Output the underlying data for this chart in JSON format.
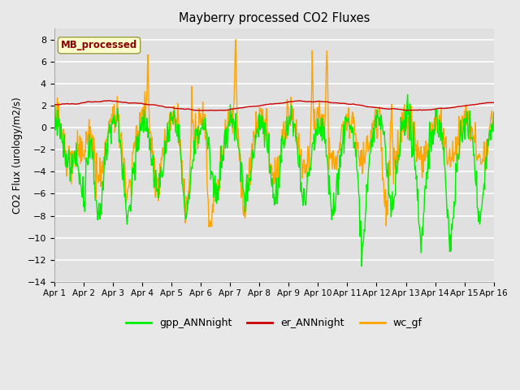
{
  "title": "Mayberry processed CO2 Fluxes",
  "ylabel": "CO2 Flux (urology/m2/s)",
  "xlim_days": 15,
  "ylim": [
    -14,
    9
  ],
  "yticks": [
    -14,
    -12,
    -10,
    -8,
    -6,
    -4,
    -2,
    0,
    2,
    4,
    6,
    8
  ],
  "x_tick_labels": [
    "Apr 1",
    "Apr 2",
    "Apr 3",
    "Apr 4",
    "Apr 5",
    "Apr 6",
    "Apr 7",
    "Apr 8",
    "Apr 9",
    "Apr 10",
    "Apr 11",
    "Apr 12",
    "Apr 13",
    "Apr 14",
    "Apr 15",
    "Apr 16"
  ],
  "series": {
    "gpp_ANNnight": {
      "color": "#00ee00",
      "lw": 1.0
    },
    "er_ANNnight": {
      "color": "#cc0000",
      "lw": 1.0
    },
    "wc_gf": {
      "color": "#ffa500",
      "lw": 1.0
    }
  },
  "legend_label": "MB_processed",
  "legend_box_facecolor": "#ffffcc",
  "legend_box_edgecolor": "#999944",
  "legend_text_color": "#880000",
  "fig_facecolor": "#e8e8e8",
  "ax_facecolor": "#e0e0e0",
  "grid_color": "#ffffff",
  "seed": 12345,
  "n_points": 720
}
